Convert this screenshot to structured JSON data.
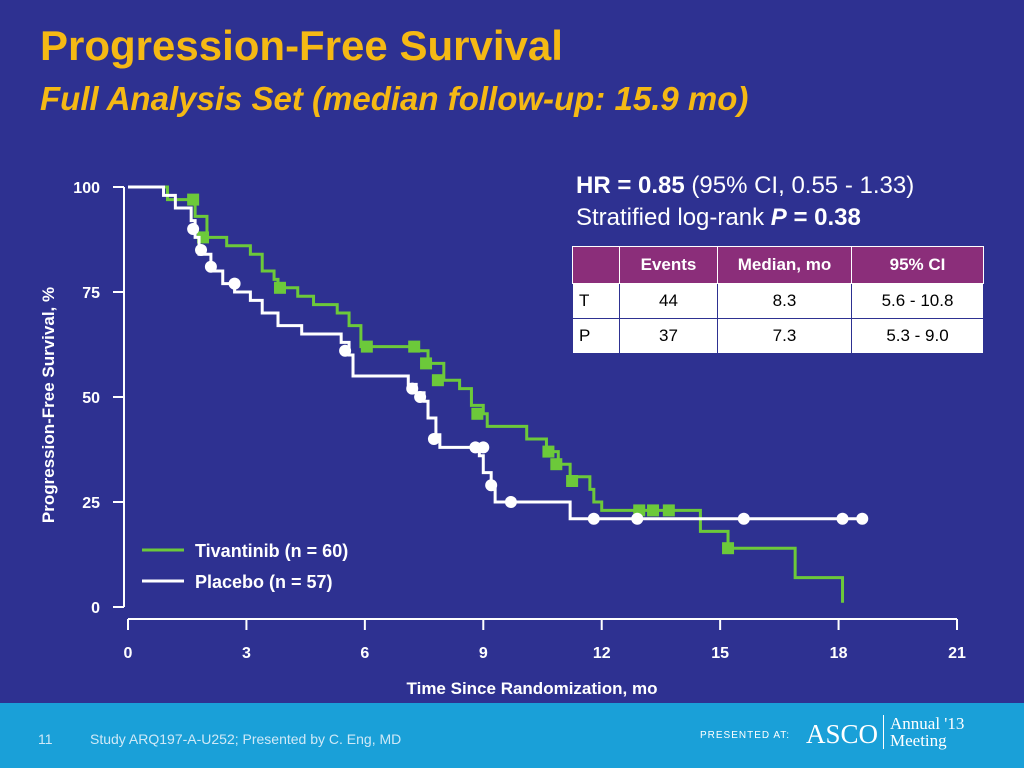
{
  "header": {
    "title": "Progression-Free Survival",
    "subtitle": "Full Analysis Set (median follow-up: 15.9 mo)"
  },
  "stats": {
    "hr_label": "HR = 0.85",
    "hr_ci": "(95% CI, 0.55 - 1.33)",
    "logrank_label": "Stratified log-rank",
    "p_label": "P",
    "p_value": "= 0.38"
  },
  "summary_table": {
    "headers": [
      "",
      "Events",
      "Median, mo",
      "95% CI"
    ],
    "rows": [
      [
        "T",
        "44",
        "8.3",
        "5.6 - 10.8"
      ],
      [
        "P",
        "37",
        "7.3",
        "5.3 - 9.0"
      ]
    ]
  },
  "footer": {
    "page_number": "11",
    "reference": "Study ARQ197-A-U252; Presented by C. Eng, MD",
    "presented_at": "PRESENTED AT:",
    "asco": "ASCO",
    "annual": "Annual '13",
    "meeting": "Meeting"
  },
  "colors": {
    "background": "#2e3191",
    "title": "#f5b914",
    "tivantinib": "#6cc93a",
    "placebo": "#ffffff",
    "table_header": "#8b2e7a",
    "footer": "#1aa0d8"
  },
  "chart_data": {
    "type": "line",
    "title": "",
    "xlabel": "Time Since Randomization, mo",
    "ylabel": "Progression-Free Survival, %",
    "xlim": [
      0,
      21
    ],
    "ylim": [
      0,
      100
    ],
    "xticks": [
      0,
      3,
      6,
      9,
      12,
      15,
      18,
      21
    ],
    "yticks": [
      0,
      25,
      50,
      75,
      100
    ],
    "legend_position": "bottom-left",
    "series": [
      {
        "name": "Tivantinib (n = 60)",
        "color": "#6cc93a",
        "marker": "square",
        "steps": [
          [
            0,
            100
          ],
          [
            0.9,
            100
          ],
          [
            1.0,
            97
          ],
          [
            1.6,
            97
          ],
          [
            1.7,
            93
          ],
          [
            1.9,
            93
          ],
          [
            2.0,
            88
          ],
          [
            2.4,
            88
          ],
          [
            2.5,
            86
          ],
          [
            3.0,
            86
          ],
          [
            3.1,
            84
          ],
          [
            3.3,
            84
          ],
          [
            3.4,
            80
          ],
          [
            3.6,
            80
          ],
          [
            3.7,
            78
          ],
          [
            3.8,
            76
          ],
          [
            4.2,
            76
          ],
          [
            4.3,
            74
          ],
          [
            4.6,
            74
          ],
          [
            4.7,
            72
          ],
          [
            5.2,
            72
          ],
          [
            5.3,
            70
          ],
          [
            5.5,
            70
          ],
          [
            5.6,
            67
          ],
          [
            5.8,
            67
          ],
          [
            5.9,
            62
          ],
          [
            7.2,
            62
          ],
          [
            7.3,
            61
          ],
          [
            7.5,
            61
          ],
          [
            7.6,
            58
          ],
          [
            7.9,
            58
          ],
          [
            8.0,
            54
          ],
          [
            8.3,
            54
          ],
          [
            8.4,
            52
          ],
          [
            8.6,
            52
          ],
          [
            8.7,
            48
          ],
          [
            8.9,
            48
          ],
          [
            9.0,
            46
          ],
          [
            9.1,
            43
          ],
          [
            10.0,
            43
          ],
          [
            10.1,
            40
          ],
          [
            10.5,
            40
          ],
          [
            10.6,
            37
          ],
          [
            10.8,
            37
          ],
          [
            10.9,
            34
          ],
          [
            11.1,
            34
          ],
          [
            11.2,
            31
          ],
          [
            11.6,
            31
          ],
          [
            11.7,
            28
          ],
          [
            11.8,
            25
          ],
          [
            12.0,
            23
          ],
          [
            14.4,
            23
          ],
          [
            14.5,
            18
          ],
          [
            15.1,
            18
          ],
          [
            15.2,
            14
          ],
          [
            16.8,
            14
          ],
          [
            16.9,
            7
          ],
          [
            18.0,
            7
          ],
          [
            18.1,
            1
          ]
        ],
        "censored": [
          [
            1.65,
            97
          ],
          [
            1.9,
            88
          ],
          [
            3.85,
            76
          ],
          [
            6.05,
            62
          ],
          [
            7.25,
            62
          ],
          [
            7.55,
            58
          ],
          [
            7.85,
            54
          ],
          [
            8.85,
            46
          ],
          [
            10.65,
            37
          ],
          [
            10.85,
            34
          ],
          [
            11.25,
            30
          ],
          [
            12.95,
            23
          ],
          [
            13.3,
            23
          ],
          [
            13.7,
            23
          ],
          [
            15.2,
            14
          ]
        ]
      },
      {
        "name": "Placebo (n = 57)",
        "color": "#ffffff",
        "marker": "circle",
        "steps": [
          [
            0,
            100
          ],
          [
            0.8,
            100
          ],
          [
            0.9,
            98
          ],
          [
            1.1,
            98
          ],
          [
            1.2,
            95
          ],
          [
            1.5,
            95
          ],
          [
            1.6,
            92
          ],
          [
            1.7,
            88
          ],
          [
            1.8,
            84
          ],
          [
            2.0,
            84
          ],
          [
            2.1,
            80
          ],
          [
            2.3,
            80
          ],
          [
            2.4,
            77
          ],
          [
            2.6,
            77
          ],
          [
            2.7,
            75
          ],
          [
            3.0,
            75
          ],
          [
            3.1,
            73
          ],
          [
            3.3,
            73
          ],
          [
            3.4,
            70
          ],
          [
            3.7,
            70
          ],
          [
            3.8,
            67
          ],
          [
            4.3,
            67
          ],
          [
            4.4,
            65
          ],
          [
            5.3,
            65
          ],
          [
            5.4,
            63
          ],
          [
            5.6,
            60
          ],
          [
            5.7,
            55
          ],
          [
            7.0,
            55
          ],
          [
            7.1,
            53
          ],
          [
            7.3,
            51
          ],
          [
            7.5,
            49
          ],
          [
            7.6,
            45
          ],
          [
            7.8,
            41
          ],
          [
            7.9,
            38
          ],
          [
            8.8,
            38
          ],
          [
            8.9,
            36
          ],
          [
            9.0,
            32
          ],
          [
            9.2,
            28
          ],
          [
            9.3,
            25
          ],
          [
            11.1,
            25
          ],
          [
            11.2,
            21
          ],
          [
            18.5,
            21
          ]
        ],
        "censored": [
          [
            1.65,
            90
          ],
          [
            1.85,
            85
          ],
          [
            2.1,
            81
          ],
          [
            2.7,
            77
          ],
          [
            5.5,
            61
          ],
          [
            7.2,
            52
          ],
          [
            7.4,
            50
          ],
          [
            7.75,
            40
          ],
          [
            8.8,
            38
          ],
          [
            9.0,
            38
          ],
          [
            9.2,
            29
          ],
          [
            9.7,
            25
          ],
          [
            11.8,
            21
          ],
          [
            12.9,
            21
          ],
          [
            15.6,
            21
          ],
          [
            18.1,
            21
          ],
          [
            18.6,
            21
          ]
        ]
      }
    ]
  }
}
